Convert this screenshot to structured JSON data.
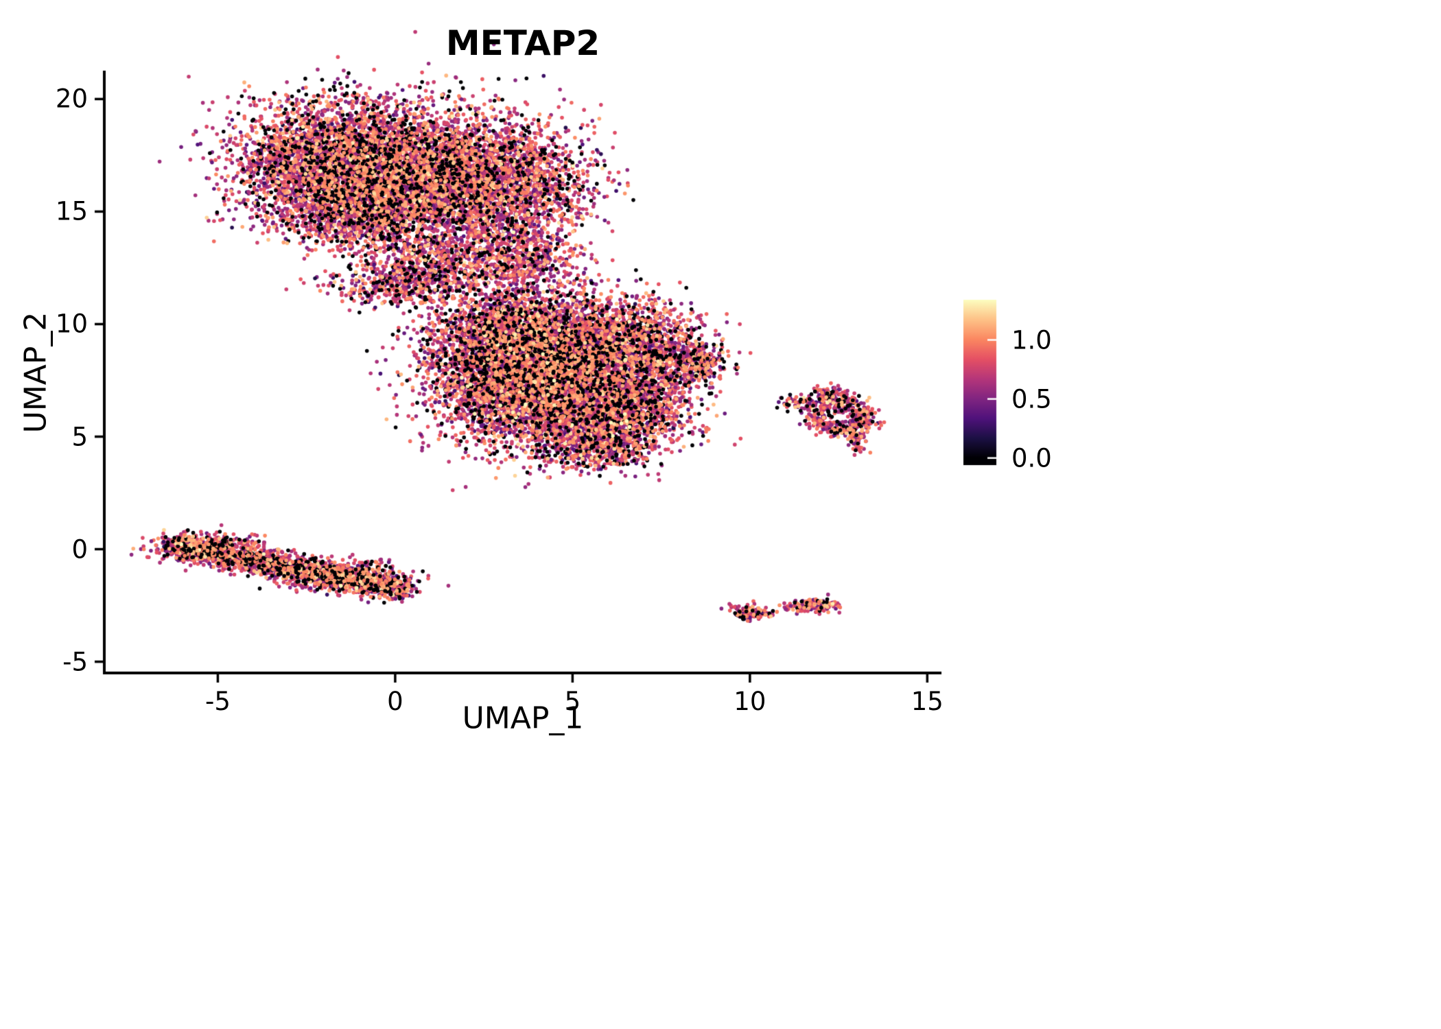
{
  "title": "METAP2",
  "axes": {
    "xlabel": "UMAP_1",
    "ylabel": "UMAP_2",
    "xlim": [
      -8.2,
      15.4
    ],
    "ylim": [
      -5.5,
      21.2
    ],
    "x_ticks": [
      "-5",
      "0",
      "5",
      "10",
      "15"
    ],
    "x_tick_values": [
      -5,
      0,
      5,
      10,
      15
    ],
    "y_ticks": [
      "-5",
      "0",
      "5",
      "10",
      "15",
      "20"
    ],
    "y_tick_values": [
      -5,
      0,
      5,
      10,
      15,
      20
    ]
  },
  "colorbar": {
    "ticks": [
      {
        "label": "1.0",
        "value": 1.0
      },
      {
        "label": "0.5",
        "value": 0.5
      },
      {
        "label": "0.0",
        "value": 0.0
      }
    ],
    "vmin": -0.06,
    "vmax": 1.34,
    "colormap": "magma",
    "stops": [
      [
        0.0,
        "#000004"
      ],
      [
        0.125,
        "#1C1044"
      ],
      [
        0.25,
        "#4F127B"
      ],
      [
        0.375,
        "#812581"
      ],
      [
        0.5,
        "#B5367A"
      ],
      [
        0.625,
        "#E55064"
      ],
      [
        0.75,
        "#FB8761"
      ],
      [
        0.875,
        "#FEC287"
      ],
      [
        1.0,
        "#FCFDBF"
      ]
    ]
  },
  "style": {
    "background": "#ffffff",
    "axis_color": "#000000",
    "text_color": "#000000",
    "dominant_point_color": "#B5367A",
    "high_point_color": "#FB8761",
    "zero_point_color": "#000004"
  },
  "chart_data": {
    "type": "scatter",
    "title": "METAP2",
    "xlabel": "UMAP_1",
    "ylabel": "UMAP_2",
    "xlim": [
      -8.2,
      15.4
    ],
    "ylim": [
      -5.5,
      21.2
    ],
    "grid": false,
    "legend_position": "right-colorbar",
    "color_scale": {
      "name": "magma",
      "domain": [
        0.0,
        1.34
      ],
      "tick_labels": [
        "0.0",
        "0.5",
        "1.0"
      ]
    },
    "seed": 42,
    "value_distribution": {
      "zero_fraction": 0.13,
      "mid_mean": 0.72,
      "mid_sd": 0.2,
      "high_fraction": 0.09,
      "high_mean": 1.05,
      "high_sd": 0.13,
      "clamp": [
        0.0,
        1.34
      ]
    },
    "clusters": [
      {
        "name": "upper-blob-left-core",
        "shape": "gaussian",
        "cx": -1.9,
        "cy": 17.2,
        "sx": 1.35,
        "sy": 1.35,
        "n": 3000
      },
      {
        "name": "upper-blob-center",
        "shape": "gaussian",
        "cx": 0.6,
        "cy": 16.9,
        "sx": 1.5,
        "sy": 1.4,
        "n": 3000
      },
      {
        "name": "upper-blob-right-lobe",
        "shape": "gaussian",
        "cx": 3.0,
        "cy": 16.2,
        "sx": 1.25,
        "sy": 1.45,
        "n": 2200
      },
      {
        "name": "upper-blob-lower-band",
        "shape": "gaussian",
        "cx": -0.6,
        "cy": 15.0,
        "sx": 1.3,
        "sy": 0.8,
        "n": 1200
      },
      {
        "name": "upper-blob-neck",
        "shape": "gaussian",
        "cx": 0.8,
        "cy": 12.6,
        "sx": 1.0,
        "sy": 0.8,
        "n": 650
      },
      {
        "name": "upper-bridge-to-middle",
        "shape": "gaussian",
        "cx": 3.4,
        "cy": 12.8,
        "sx": 0.9,
        "sy": 0.75,
        "n": 550
      },
      {
        "name": "upper-blob-bottom-tip",
        "shape": "gaussian",
        "cx": 0.0,
        "cy": 11.7,
        "sx": 1.0,
        "sy": 0.4,
        "n": 280
      },
      {
        "name": "middle-blob-upper-left",
        "shape": "gaussian",
        "cx": 3.5,
        "cy": 9.2,
        "sx": 1.3,
        "sy": 1.1,
        "n": 2800
      },
      {
        "name": "middle-blob-core",
        "shape": "gaussian",
        "cx": 5.0,
        "cy": 8.2,
        "sx": 1.5,
        "sy": 1.4,
        "n": 3000
      },
      {
        "name": "middle-blob-left",
        "shape": "gaussian",
        "cx": 3.3,
        "cy": 7.0,
        "sx": 1.1,
        "sy": 1.2,
        "n": 1900
      },
      {
        "name": "middle-blob-lower",
        "shape": "gaussian",
        "cx": 5.5,
        "cy": 5.8,
        "sx": 1.2,
        "sy": 1.0,
        "n": 1500
      },
      {
        "name": "middle-blob-upper-right",
        "shape": "gaussian",
        "cx": 6.8,
        "cy": 9.2,
        "sx": 0.9,
        "sy": 0.9,
        "n": 900
      },
      {
        "name": "middle-blob-right-tail",
        "shape": "gaussian",
        "cx": 8.4,
        "cy": 8.25,
        "sx": 0.5,
        "sy": 0.4,
        "n": 300
      },
      {
        "name": "middle-blob-right-lower",
        "shape": "gaussian",
        "cx": 6.9,
        "cy": 6.5,
        "sx": 0.8,
        "sy": 0.85,
        "n": 650
      },
      {
        "name": "middle-blob-bottom-tip",
        "shape": "gaussian",
        "cx": 5.9,
        "cy": 4.6,
        "sx": 0.7,
        "sy": 0.5,
        "n": 350
      },
      {
        "name": "lower-left-stripe",
        "shape": "stripe",
        "x1": -6.3,
        "y1": 0.15,
        "x2": 0.25,
        "y2": -1.75,
        "sigma": 0.27,
        "n": 2300
      },
      {
        "name": "lower-left-stripe-head",
        "shape": "gaussian",
        "cx": -5.3,
        "cy": 0.1,
        "sx": 0.7,
        "sy": 0.3,
        "n": 400
      },
      {
        "name": "lower-left-stripe-mid",
        "shape": "gaussian",
        "cx": -1.5,
        "cy": -1.2,
        "sx": 0.9,
        "sy": 0.35,
        "n": 400
      },
      {
        "name": "right-ring",
        "shape": "ring",
        "cx": 12.55,
        "cy": 5.9,
        "r": 0.7,
        "sr": 0.22,
        "n": 400
      },
      {
        "name": "right-ring-top-knob",
        "shape": "gaussian",
        "cx": 12.2,
        "cy": 6.9,
        "sx": 0.3,
        "sy": 0.2,
        "n": 90
      },
      {
        "name": "right-ring-bottom-tip",
        "shape": "gaussian",
        "cx": 13.0,
        "cy": 4.8,
        "sx": 0.18,
        "sy": 0.3,
        "n": 70
      },
      {
        "name": "right-ring-left-scatter",
        "shape": "gaussian",
        "cx": 11.35,
        "cy": 6.6,
        "sx": 0.3,
        "sy": 0.18,
        "n": 45
      },
      {
        "name": "bottom-right-islet-1",
        "shape": "gaussian",
        "cx": 10.0,
        "cy": -2.8,
        "sx": 0.28,
        "sy": 0.14,
        "n": 150
      },
      {
        "name": "bottom-right-islet-2",
        "shape": "gaussian",
        "cx": 11.75,
        "cy": -2.5,
        "sx": 0.33,
        "sy": 0.15,
        "n": 130
      },
      {
        "name": "bottom-right-dot-1",
        "shape": "gaussian",
        "cx": 11.05,
        "cy": -2.65,
        "sx": 0.06,
        "sy": 0.05,
        "n": 10
      },
      {
        "name": "bottom-right-dot-2",
        "shape": "gaussian",
        "cx": 12.35,
        "cy": -2.4,
        "sx": 0.08,
        "sy": 0.06,
        "n": 12
      }
    ]
  }
}
